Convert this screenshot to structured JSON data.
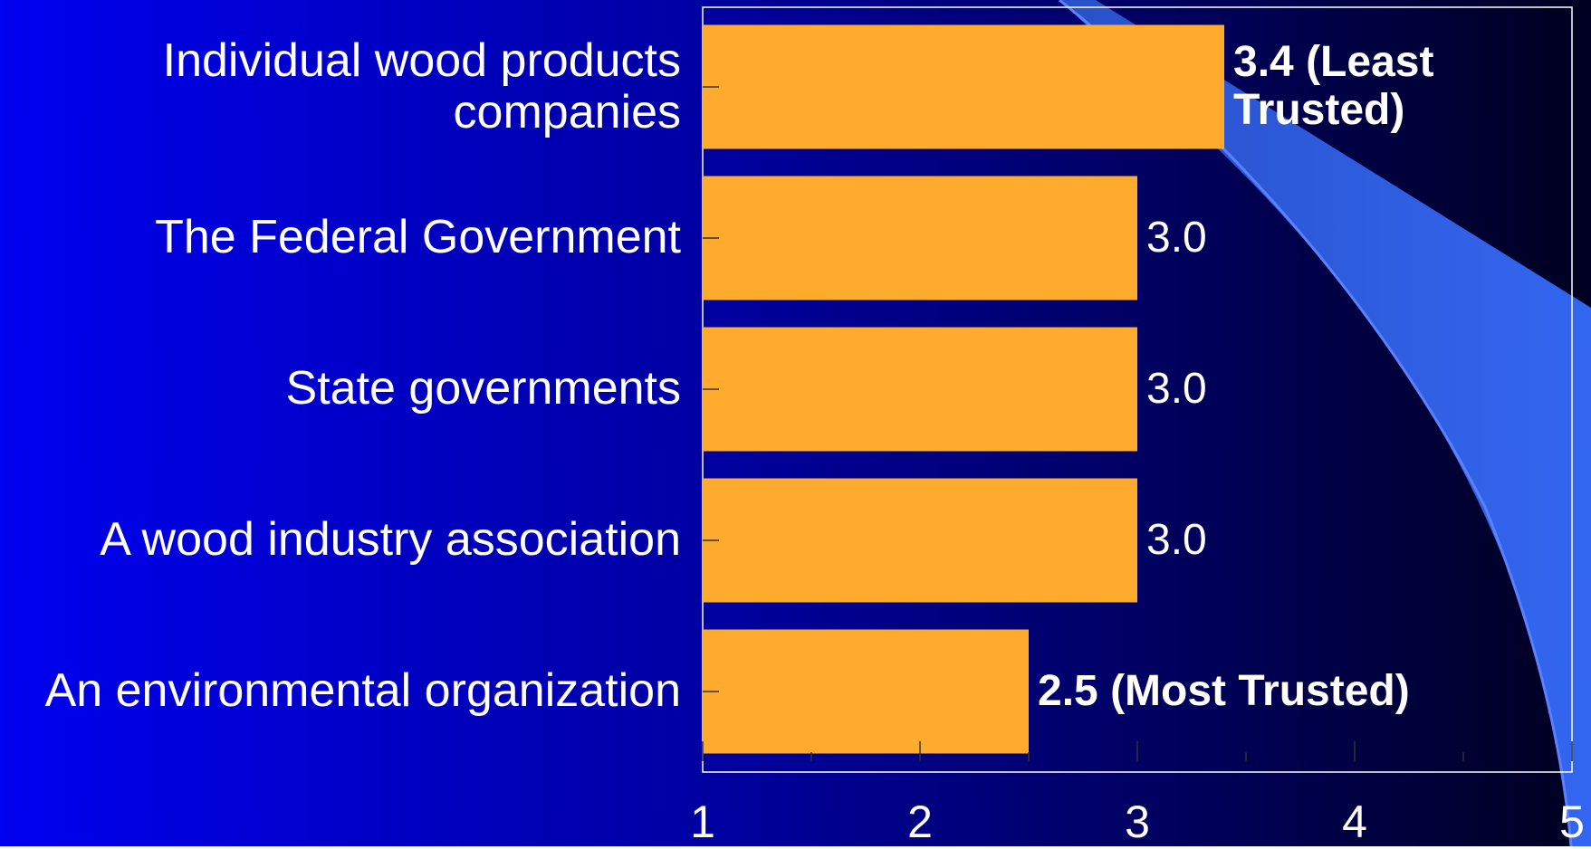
{
  "chart_data": {
    "type": "bar",
    "orientation": "horizontal",
    "categories": [
      "Individual wood products companies",
      "The Federal Government",
      "State governments",
      "A wood industry association",
      "An environmental organization"
    ],
    "values": [
      3.4,
      3.0,
      3.0,
      3.0,
      2.5
    ],
    "value_labels": [
      "3.4 (Least Trusted)",
      "3.0",
      "3.0",
      "3.0",
      "2.5 (Most Trusted)"
    ],
    "color": "#ffab2e",
    "xlim": [
      1,
      5
    ],
    "xticks": [
      1,
      2,
      3,
      4,
      5
    ]
  }
}
